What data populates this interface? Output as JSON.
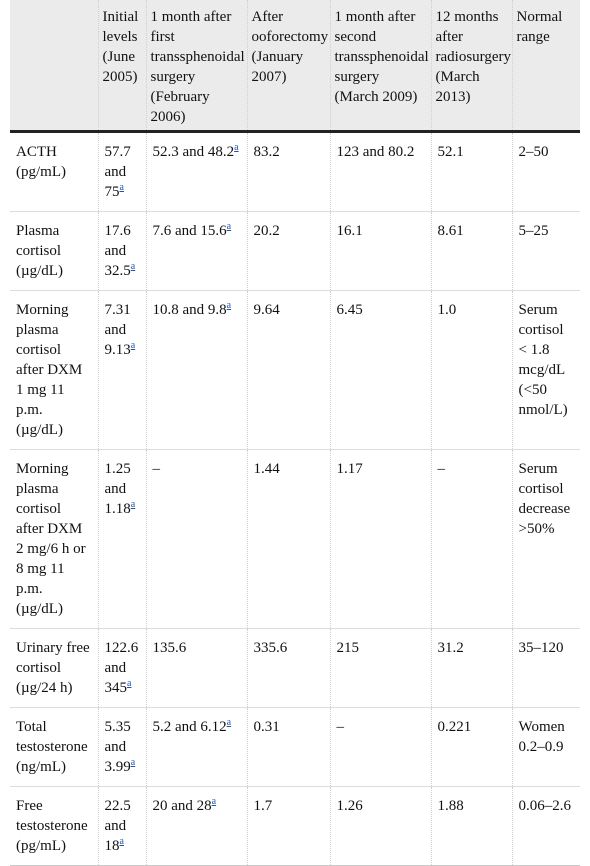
{
  "headers": [
    "",
    "Initial levels (June 2005)",
    "1 month after first transsphenoidal surgery (February 2006)",
    "After ooforectomy (January 2007)",
    "1 month after second transsphenoidal surgery (March 2009)",
    "12 months after radiosurgery (March 2013)",
    "Normal range"
  ],
  "footnote_mark": "a",
  "rows": [
    {
      "label": "ACTH (pg/mL)",
      "cells": [
        {
          "text": "57.7 and 75",
          "fn": true
        },
        {
          "text": "52.3 and 48.2",
          "fn": true
        },
        {
          "text": "83.2"
        },
        {
          "text": "123 and 80.2"
        },
        {
          "text": "52.1"
        },
        {
          "text": "2–50"
        }
      ]
    },
    {
      "label": "Plasma cortisol (µg/dL)",
      "cells": [
        {
          "text": "17.6 and 32.5",
          "fn": true
        },
        {
          "text": "7.6 and 15.6",
          "fn": true
        },
        {
          "text": "20.2"
        },
        {
          "text": "16.1"
        },
        {
          "text": "8.61"
        },
        {
          "text": "5–25"
        }
      ]
    },
    {
      "label": "Morning plasma cortisol after DXM 1 mg 11 p.m. (µg/dL)",
      "cells": [
        {
          "text": "7.31 and 9.13",
          "fn": true
        },
        {
          "text": "10.8 and 9.8",
          "fn": true
        },
        {
          "text": "9.64"
        },
        {
          "text": "6.45"
        },
        {
          "text": "1.0"
        },
        {
          "text": "Serum cortisol < 1.8 mcg/dL (<50 nmol/L)"
        }
      ]
    },
    {
      "label": "Morning plasma cortisol after DXM 2 mg/6 h or 8 mg 11 p.m. (µg/dL)",
      "cells": [
        {
          "text": "1.25 and 1.18",
          "fn": true
        },
        {
          "text": "–"
        },
        {
          "text": "1.44"
        },
        {
          "text": "1.17"
        },
        {
          "text": "–"
        },
        {
          "text": "Serum cortisol decrease >50%"
        }
      ]
    },
    {
      "label": "Urinary free cortisol (µg/24 h)",
      "cells": [
        {
          "text": "122.6 and 345",
          "fn": true
        },
        {
          "text": "135.6"
        },
        {
          "text": "335.6"
        },
        {
          "text": "215"
        },
        {
          "text": "31.2"
        },
        {
          "text": "35–120"
        }
      ]
    },
    {
      "label": "Total testosterone (ng/mL)",
      "cells": [
        {
          "text": "5.35 and 3.99",
          "fn": true
        },
        {
          "text": "5.2 and 6.12",
          "fn": true
        },
        {
          "text": "0.31"
        },
        {
          "text": "–"
        },
        {
          "text": "0.221"
        },
        {
          "text": "Women 0.2–0.9"
        }
      ]
    },
    {
      "label": "Free testosterone (pg/mL)",
      "cells": [
        {
          "text": "22.5 and 18",
          "fn": true
        },
        {
          "text": "20 and 28",
          "fn": true
        },
        {
          "text": "1.7"
        },
        {
          "text": "1.26"
        },
        {
          "text": "1.88"
        },
        {
          "text": "0.06–2.6"
        }
      ]
    }
  ]
}
